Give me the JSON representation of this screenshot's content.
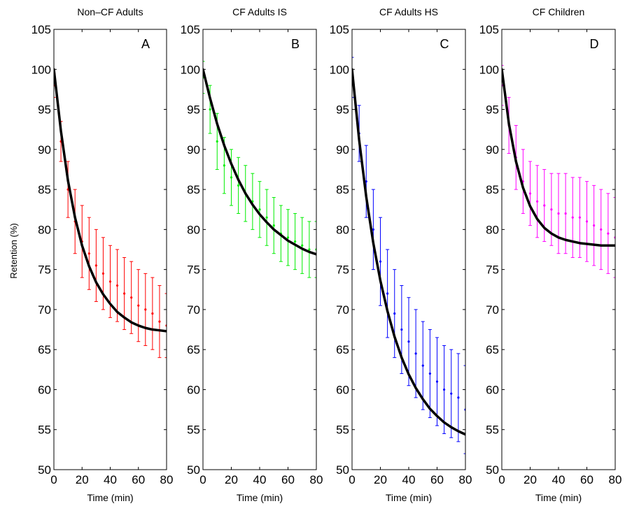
{
  "figure": {
    "ylabel": "Retention (%)"
  },
  "chart_data": [
    {
      "type": "scatter",
      "panel_letter": "A",
      "title": "Non–CF Adults",
      "xlabel": "Time (min)",
      "xlim": [
        0,
        80
      ],
      "ylim": [
        50,
        105
      ],
      "xticks": [
        0,
        20,
        40,
        60,
        80
      ],
      "yticks": [
        50,
        55,
        60,
        65,
        70,
        75,
        80,
        85,
        90,
        95,
        100,
        105
      ],
      "color": "#ff0000",
      "series": [
        {
          "kind": "data_with_error_bars",
          "x": [
            0,
            5,
            10,
            15,
            20,
            25,
            30,
            35,
            40,
            45,
            50,
            55,
            60,
            65,
            70,
            75,
            80
          ],
          "values": [
            98,
            91,
            85,
            81,
            78.5,
            77,
            75.5,
            74.5,
            73.5,
            73,
            72,
            71.5,
            70.5,
            70,
            69.5,
            68.5,
            68
          ],
          "error": [
            1.5,
            2.5,
            3.5,
            4,
            4.5,
            4.5,
            4.5,
            4.5,
            4.5,
            4.5,
            4.5,
            4.5,
            4.5,
            4.5,
            4.5,
            4.5,
            4
          ]
        },
        {
          "kind": "fit_curve",
          "x": [
            0,
            5,
            10,
            15,
            20,
            25,
            30,
            35,
            40,
            45,
            50,
            55,
            60,
            65,
            70,
            75,
            80
          ],
          "values": [
            100,
            92.3,
            86.1,
            81.5,
            78.0,
            75.4,
            73.4,
            71.9,
            70.7,
            69.7,
            69.0,
            68.4,
            68.0,
            67.7,
            67.5,
            67.4,
            67.3
          ]
        }
      ]
    },
    {
      "type": "scatter",
      "panel_letter": "B",
      "title": "CF Adults IS",
      "xlabel": "Time (min)",
      "xlim": [
        0,
        80
      ],
      "ylim": [
        50,
        105
      ],
      "xticks": [
        0,
        20,
        40,
        60,
        80
      ],
      "yticks": [
        50,
        55,
        60,
        65,
        70,
        75,
        80,
        85,
        90,
        95,
        100,
        105
      ],
      "color": "#00ee00",
      "series": [
        {
          "kind": "data_with_error_bars",
          "x": [
            0,
            5,
            10,
            15,
            20,
            25,
            30,
            35,
            40,
            45,
            50,
            55,
            60,
            65,
            70,
            75,
            80
          ],
          "values": [
            99,
            95,
            91,
            88,
            86.5,
            85.5,
            84.5,
            83.5,
            82.5,
            81.5,
            80.5,
            79.5,
            79,
            78.5,
            78,
            77.5,
            77.5
          ],
          "error": [
            2,
            3,
            3.5,
            3.5,
            3.5,
            3.5,
            3.5,
            3.5,
            3.5,
            3.5,
            3.5,
            3.5,
            3.5,
            3.5,
            3.5,
            3.5,
            3.5
          ]
        },
        {
          "kind": "fit_curve",
          "x": [
            0,
            5,
            10,
            15,
            20,
            25,
            30,
            35,
            40,
            45,
            50,
            55,
            60,
            65,
            70,
            75,
            80
          ],
          "values": [
            100,
            96.4,
            93.2,
            90.5,
            88.2,
            86.2,
            84.5,
            83.1,
            81.9,
            80.9,
            80.0,
            79.3,
            78.6,
            78.1,
            77.6,
            77.2,
            76.9
          ]
        }
      ]
    },
    {
      "type": "scatter",
      "panel_letter": "C",
      "title": "CF Adults HS",
      "xlabel": "Time (min)",
      "xlim": [
        0,
        80
      ],
      "ylim": [
        50,
        105
      ],
      "xticks": [
        0,
        20,
        40,
        60,
        80
      ],
      "yticks": [
        50,
        55,
        60,
        65,
        70,
        75,
        80,
        85,
        90,
        95,
        100,
        105
      ],
      "color": "#0000ff",
      "series": [
        {
          "kind": "data_with_error_bars",
          "x": [
            0,
            5,
            10,
            15,
            20,
            25,
            30,
            35,
            40,
            45,
            50,
            55,
            60,
            65,
            70,
            75,
            80
          ],
          "values": [
            99,
            92,
            86,
            80,
            76,
            72,
            69.5,
            67.5,
            66,
            64.5,
            63,
            62,
            61,
            60,
            59.5,
            59,
            57.5
          ],
          "error": [
            2.5,
            3.5,
            4.5,
            5,
            5.5,
            5.5,
            5.5,
            5.5,
            5.5,
            5.5,
            5.5,
            5.5,
            5.5,
            5.5,
            5.5,
            5.5,
            5.5
          ]
        },
        {
          "kind": "fit_curve",
          "x": [
            0,
            5,
            10,
            15,
            20,
            25,
            30,
            35,
            40,
            45,
            50,
            55,
            60,
            65,
            70,
            75,
            80
          ],
          "values": [
            100,
            91.2,
            84.1,
            78.3,
            73.6,
            69.8,
            66.6,
            64.0,
            61.9,
            60.2,
            58.8,
            57.6,
            56.7,
            55.9,
            55.3,
            54.8,
            54.4
          ]
        }
      ]
    },
    {
      "type": "scatter",
      "panel_letter": "D",
      "title": "CF Children",
      "xlabel": "Time (min)",
      "xlim": [
        0,
        80
      ],
      "ylim": [
        50,
        105
      ],
      "xticks": [
        0,
        20,
        40,
        60,
        80
      ],
      "yticks": [
        50,
        55,
        60,
        65,
        70,
        75,
        80,
        85,
        90,
        95,
        100,
        105
      ],
      "color": "#ff00ff",
      "series": [
        {
          "kind": "data_with_error_bars",
          "x": [
            0,
            5,
            10,
            15,
            20,
            25,
            30,
            35,
            40,
            45,
            50,
            55,
            60,
            65,
            70,
            75,
            80
          ],
          "values": [
            98,
            93,
            89,
            86,
            84.5,
            83.5,
            83,
            82.5,
            82,
            82,
            81.5,
            81.5,
            81,
            80.5,
            80,
            79.5,
            79
          ],
          "error": [
            2.5,
            3.5,
            4,
            4,
            4,
            4.5,
            4.5,
            4.5,
            5,
            5,
            5,
            5,
            5,
            5,
            5,
            5,
            5
          ]
        },
        {
          "kind": "fit_curve",
          "x": [
            0,
            5,
            10,
            15,
            20,
            25,
            30,
            35,
            40,
            45,
            50,
            55,
            60,
            65,
            70,
            75,
            80
          ],
          "values": [
            100,
            93.2,
            88.5,
            85.2,
            82.9,
            81.3,
            80.2,
            79.5,
            79.0,
            78.7,
            78.5,
            78.3,
            78.2,
            78.1,
            78.0,
            78.0,
            78.0
          ]
        }
      ]
    }
  ]
}
